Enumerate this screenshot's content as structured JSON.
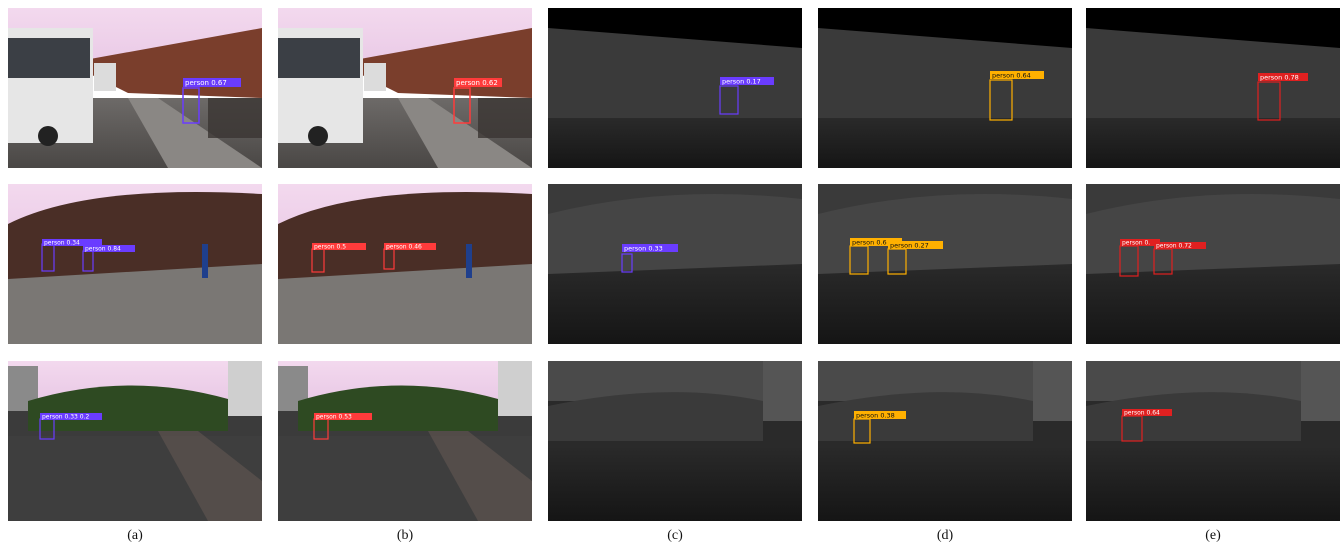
{
  "captions": [
    "(a)",
    "(b)",
    "(c)",
    "(d)",
    "(e)"
  ],
  "columns": [
    {
      "modality": "rgb",
      "box_color": "#6a3cff"
    },
    {
      "modality": "rgb",
      "box_color": "#ff3b3b"
    },
    {
      "modality": "thermal",
      "box_color": "#6a3cff"
    },
    {
      "modality": "thermal",
      "box_color": "#ffb000"
    },
    {
      "modality": "thermal",
      "box_color": "#e02020"
    }
  ],
  "detections": [
    [
      [
        "person 0.67"
      ],
      [
        "person 0.62"
      ],
      [
        "person 0.17"
      ],
      [
        "person 0.64"
      ],
      [
        "person 0.78"
      ]
    ],
    [
      [
        "person 0.34",
        "person 0.84"
      ],
      [
        "person 0.5",
        "person 0.46"
      ],
      [
        "person 0.33"
      ],
      [
        "person 0.6",
        "person 0.27"
      ],
      [
        "person 0.",
        "person 0.72"
      ]
    ],
    [
      [
        "person 0.33 0.2"
      ],
      [
        "person 0.53"
      ],
      [],
      [
        "person 0.38"
      ],
      [
        "person 0.64"
      ]
    ]
  ]
}
